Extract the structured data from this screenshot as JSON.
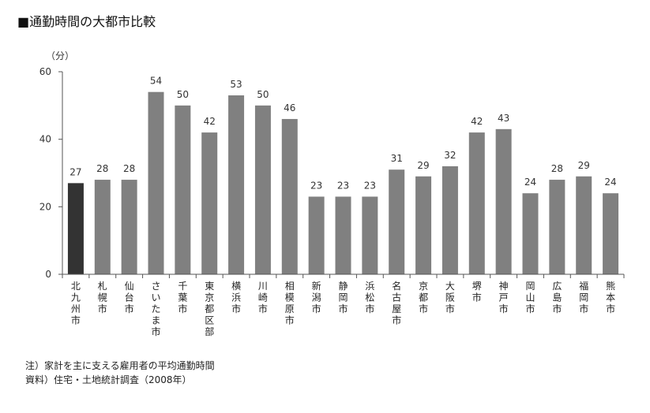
{
  "title": "■通勤時間の大都市比較",
  "notes": {
    "note1": "注）家計を主に支える雇用者の平均通勤時間",
    "note2": "資料）住宅・土地統計調査（2008年）"
  },
  "colors": {
    "highlight": "#333333",
    "bar": "#808080",
    "axis": "#555555"
  },
  "chart_data": {
    "type": "bar",
    "title": "■通勤時間の大都市比較",
    "ylabel": "（分）",
    "xlabel": "",
    "ylim": [
      0,
      60
    ],
    "yticks": [
      0,
      20,
      40,
      60
    ],
    "grid": false,
    "legend": "none",
    "categories": [
      "北九州市",
      "札幌市",
      "仙台市",
      "さいたま市",
      "千葉市",
      "東京都区部",
      "横浜市",
      "川崎市",
      "相模原市",
      "新潟市",
      "静岡市",
      "浜松市",
      "名古屋市",
      "京都市",
      "大阪市",
      "堺市",
      "神戸市",
      "岡山市",
      "広島市",
      "福岡市",
      "熊本市"
    ],
    "values": [
      27,
      28,
      28,
      54,
      50,
      42,
      53,
      50,
      46,
      23,
      23,
      23,
      31,
      29,
      32,
      42,
      43,
      24,
      28,
      29,
      24
    ],
    "highlight_index": 0
  }
}
